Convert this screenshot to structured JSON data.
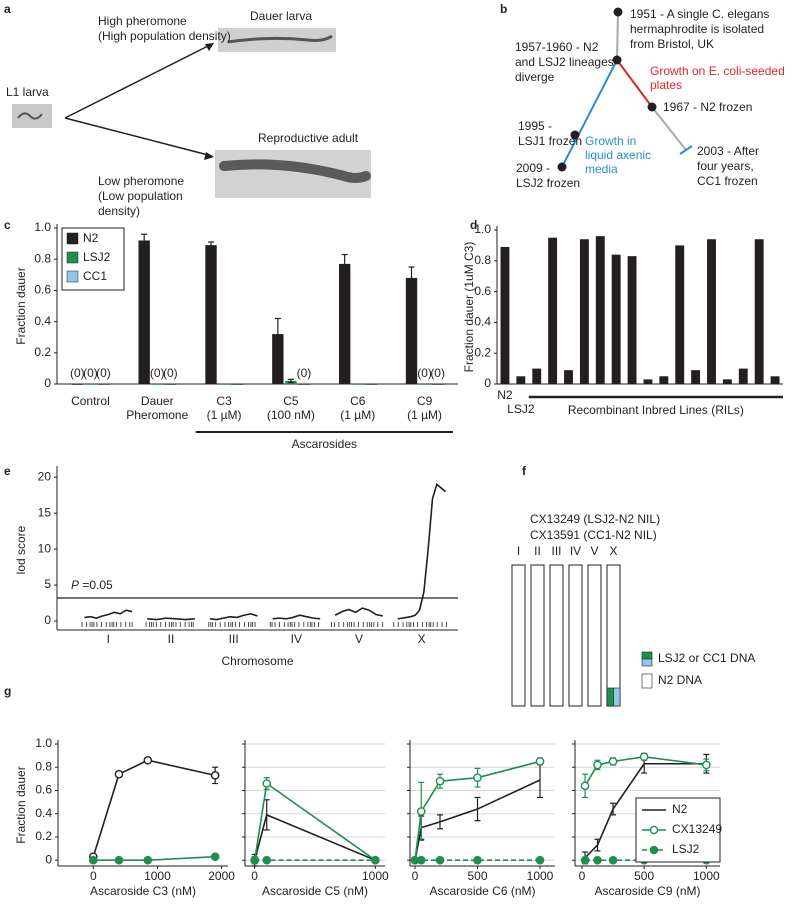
{
  "panel_labels": [
    "a",
    "b",
    "c",
    "d",
    "e",
    "f",
    "g"
  ],
  "diagram_a": {
    "start": "L1 larva",
    "upper_condition": [
      "High pheromone",
      "(High population density)"
    ],
    "upper_outcome": "Dauer larva",
    "lower_condition": [
      "Low pheromone",
      "(Low population",
      "density)"
    ],
    "lower_outcome": "Reproductive adult"
  },
  "diagram_b": {
    "events": [
      {
        "lines": [
          "1951 - A single C. elegans",
          "hermaphrodite is isolated",
          "from Bristol, UK"
        ]
      },
      {
        "lines": [
          "1957-1960 - N2",
          "and LSJ2 lineages",
          "diverge"
        ]
      },
      {
        "lines": [
          "1967 - N2 frozen"
        ]
      },
      {
        "lines": [
          "1995 -",
          "LSJ1 frozen"
        ]
      },
      {
        "lines": [
          "2009 -",
          "LSJ2 frozen"
        ]
      },
      {
        "lines": [
          "2003 - After",
          "four years,",
          "CC1 frozen"
        ]
      }
    ],
    "conditions": [
      {
        "lines": [
          "Growth on E. coli-seeded",
          "plates"
        ],
        "color": "#e0262b"
      },
      {
        "lines": [
          "Growth in",
          "liquid axenic",
          "media"
        ],
        "color": "#2b8ccf"
      }
    ]
  },
  "diagram_f": {
    "strains": [
      "CX13249 (LSJ2-N2 NIL)",
      "CX13591 (CC1-N2 NIL)"
    ],
    "chromosomes": [
      "I",
      "II",
      "III",
      "IV",
      "V",
      "X"
    ],
    "legend": [
      {
        "label": "LSJ2 or CC1 DNA",
        "colors": [
          "#1f8f4e",
          "#8ec6e8"
        ]
      },
      {
        "label": "N2 DNA",
        "colors": [
          "#ffffff"
        ]
      }
    ]
  },
  "chart_data": [
    {
      "type": "grouped_bar",
      "ylabel": "Fraction dauer",
      "categories": [
        [
          "Control"
        ],
        [
          "Dauer",
          "Pheromone"
        ],
        [
          "C3",
          "(1 µM)"
        ],
        [
          "C5",
          "(100 nM)"
        ],
        [
          "C6",
          "(1 µM)"
        ],
        [
          "C9",
          "(1 µM)"
        ]
      ],
      "series": [
        {
          "name": "N2",
          "color": "#231f20",
          "values": [
            0,
            0.92,
            0.89,
            0.32,
            0.77,
            0.68
          ],
          "errors": [
            0,
            0.04,
            0.02,
            0.1,
            0.06,
            0.07
          ],
          "value_labels": [
            "(0)",
            null,
            null,
            null,
            null,
            null
          ]
        },
        {
          "name": "LSJ2",
          "color": "#1f8f4e",
          "values": [
            0,
            0,
            0,
            0.02,
            0,
            0
          ],
          "errors": [
            0,
            0,
            0,
            0.01,
            0,
            0
          ],
          "value_labels": [
            "(0)",
            "(0)",
            null,
            null,
            null,
            "(0)"
          ]
        },
        {
          "name": "CC1",
          "color": "#8ec6e8",
          "values": [
            0,
            0,
            0,
            0,
            0,
            0
          ],
          "errors": [
            0,
            0,
            0,
            0,
            0,
            0
          ],
          "value_labels": [
            "(0)",
            "(0)",
            null,
            "(0)",
            null,
            "(0)"
          ]
        }
      ],
      "group_label": "Ascarosides",
      "ylim": [
        0,
        1
      ],
      "yticks": [
        0,
        0.2,
        0.4,
        0.6,
        0.8,
        {
          "value": 1,
          "label": "1.0"
        }
      ],
      "legend": "upper left"
    },
    {
      "type": "bar",
      "ylabel": "Fraction dauer (1uM C3)",
      "categories": [
        "N2",
        "LSJ2",
        null,
        null,
        null,
        null,
        null,
        null,
        null,
        null,
        null,
        null,
        null,
        null,
        null,
        null,
        null,
        null
      ],
      "values": [
        0.89,
        0.05,
        0.1,
        0.95,
        0.09,
        0.94,
        0.96,
        0.84,
        0.83,
        0.03,
        0.05,
        0.9,
        0.09,
        0.94,
        0.03,
        0.1,
        0.94,
        0.05
      ],
      "color": "#231f20",
      "group_label": "Recombinant Inbred Lines (RILs)",
      "ylim": [
        0,
        1
      ],
      "yticks": [
        0,
        0.2,
        0.4,
        0.6,
        0.8,
        {
          "value": 1,
          "label": "1.0"
        }
      ]
    },
    {
      "type": "profile",
      "xlabel": "Chromosome",
      "ylabel": "lod score",
      "categories": [
        "I",
        "II",
        "III",
        "IV",
        "V",
        "X"
      ],
      "profiles": [
        [
          0.5,
          0.6,
          0.4,
          0.7,
          0.9,
          1.2,
          1.0,
          1.5,
          1.3
        ],
        [
          0.3,
          0.2,
          0.4,
          0.3,
          0.2,
          0.3
        ],
        [
          0.3,
          0.2,
          0.4,
          0.6,
          0.5,
          0.8,
          1.0,
          0.7
        ],
        [
          0.3,
          0.4,
          0.3,
          0.5,
          0.8,
          0.6,
          0.4,
          0.3
        ],
        [
          0.8,
          1.3,
          1.6,
          1.2,
          1.8,
          1.5,
          0.9,
          0.7
        ],
        [
          0.3,
          0.4,
          0.5,
          0.6,
          0.8,
          1.5,
          4,
          10,
          17,
          19,
          18.5,
          18
        ]
      ],
      "threshold": 3.2,
      "threshold_label": {
        "symbol": "P",
        "text": " =0.05"
      },
      "ylim": [
        -1.25,
        21
      ],
      "yticks": [
        0,
        5,
        10,
        15,
        20
      ]
    },
    {
      "type": "line",
      "xlabel": "Ascaroside C3 (nM)",
      "ylabel": "Fraction dauer",
      "x": [
        0,
        400,
        850,
        1900
      ],
      "series": [
        {
          "color": "#231f20",
          "marker": "open",
          "dashed": false,
          "values": [
            0.03,
            0.74,
            0.86,
            0.73
          ],
          "errors": [
            0.02,
            0.01,
            0.02,
            0.07
          ]
        },
        {
          "color": "#1f8f4e",
          "marker": "filled",
          "dashed": false,
          "values": [
            0,
            0,
            0,
            0.03
          ],
          "errors": [
            0,
            0,
            0,
            0.02
          ]
        }
      ],
      "xlim": [
        -550,
        2100
      ],
      "xticks": [
        0,
        1000,
        2000
      ],
      "ylim": [
        -0.05,
        1
      ],
      "yticks": [
        0,
        0.2,
        0.4,
        0.6,
        0.8,
        {
          "value": 1,
          "label": "1.0"
        }
      ],
      "grid": false
    },
    {
      "type": "line",
      "xlabel": "Ascaroside C5 (nM)",
      "x": [
        0,
        100,
        1000
      ],
      "series": [
        {
          "color": "#231f20",
          "marker": "none",
          "dashed": false,
          "values": [
            0,
            0.39,
            0
          ],
          "errors": [
            0.05,
            0.13,
            0.01
          ]
        },
        {
          "color": "#1f8f4e",
          "marker": "open",
          "dashed": false,
          "values": [
            0,
            0.66,
            0
          ],
          "errors": [
            0.03,
            0.05,
            0.01
          ]
        },
        {
          "color": "#1f8f4e",
          "marker": "filled",
          "dashed": true,
          "values": [
            0,
            0,
            0
          ],
          "errors": [
            0,
            0,
            0
          ]
        }
      ],
      "xlim": [
        -80,
        1080
      ],
      "xticks": [
        0,
        1000
      ],
      "ylim": [
        -0.05,
        1
      ],
      "yticks": [
        0,
        0.2,
        0.4,
        0.6,
        0.8,
        1
      ],
      "ytick_labels": false,
      "grid": true
    },
    {
      "type": "line",
      "xlabel": "Ascaroside C6 (nM)",
      "x": [
        0,
        50,
        200,
        500,
        1000
      ],
      "series": [
        {
          "color": "#231f20",
          "marker": "none",
          "dashed": false,
          "values": [
            0,
            0.28,
            0.33,
            0.44,
            0.69
          ],
          "errors": [
            0,
            0.1,
            0.06,
            0.1,
            0.15
          ]
        },
        {
          "color": "#1f8f4e",
          "marker": "open",
          "dashed": false,
          "values": [
            0,
            0.42,
            0.68,
            0.71,
            0.85
          ],
          "errors": [
            0,
            0.25,
            0.06,
            0.08,
            0.03
          ]
        },
        {
          "color": "#1f8f4e",
          "marker": "filled",
          "dashed": true,
          "values": [
            0,
            0,
            0,
            0,
            0
          ],
          "errors": [
            0,
            0,
            0,
            0,
            0
          ]
        }
      ],
      "xlim": [
        -40,
        1120
      ],
      "xticks": [
        0,
        500,
        1000
      ],
      "ylim": [
        -0.05,
        1
      ],
      "yticks": [
        0,
        0.2,
        0.4,
        0.6,
        0.8,
        1
      ],
      "ytick_labels": false,
      "grid": true
    },
    {
      "type": "line",
      "xlabel": "Ascaroside C9 (nM)",
      "x": [
        25,
        125,
        250,
        500,
        1000
      ],
      "series": [
        {
          "name": "N2",
          "color": "#231f20",
          "marker": "none",
          "dashed": false,
          "values": [
            0.02,
            0.13,
            0.44,
            0.83,
            0.83
          ],
          "errors": [
            0.05,
            0.05,
            0.05,
            0.08,
            0.08
          ]
        },
        {
          "name": "CX13249",
          "color": "#1f8f4e",
          "marker": "open",
          "dashed": false,
          "values": [
            0.64,
            0.82,
            0.85,
            0.89,
            0.82
          ],
          "errors": [
            0.1,
            0.04,
            0.03,
            0.03,
            0.05
          ]
        },
        {
          "name": "LSJ2",
          "color": "#1f8f4e",
          "marker": "filled",
          "dashed": true,
          "values": [
            0,
            0,
            0,
            0,
            0
          ],
          "errors": [
            0,
            0,
            0,
            0,
            0
          ]
        }
      ],
      "xlim": [
        -56,
        1110
      ],
      "xticks": [
        0,
        500,
        1000
      ],
      "ylim": [
        -0.05,
        1
      ],
      "yticks": [
        0,
        0.2,
        0.4,
        0.6,
        0.8,
        1
      ],
      "ytick_labels": false,
      "grid": true,
      "legend": "lower right"
    }
  ]
}
